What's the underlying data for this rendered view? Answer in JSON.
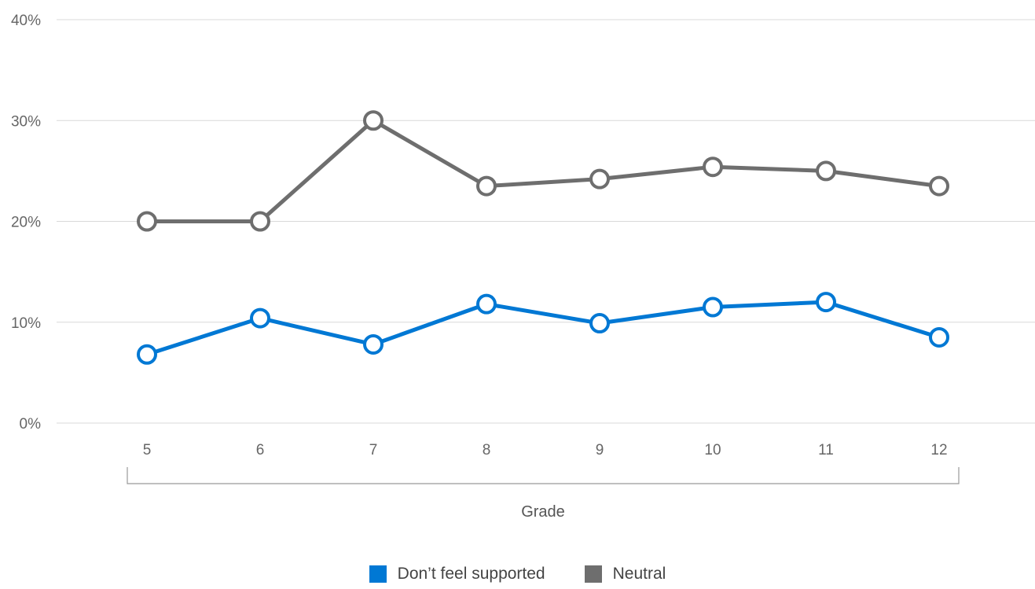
{
  "chart_data": {
    "type": "line",
    "categories": [
      "5",
      "6",
      "7",
      "8",
      "9",
      "10",
      "11",
      "12"
    ],
    "series": [
      {
        "name": "Don’t feel supported",
        "color": "#0078d4",
        "values": [
          6.8,
          10.4,
          7.8,
          11.8,
          9.9,
          11.5,
          12.0,
          8.5
        ]
      },
      {
        "name": "Neutral",
        "color": "#6e6e6e",
        "values": [
          20.0,
          20.0,
          30.0,
          23.5,
          24.2,
          25.4,
          25.0,
          23.5
        ]
      }
    ],
    "y_ticks": [
      "0%",
      "10%",
      "20%",
      "30%",
      "40%"
    ],
    "ylim": [
      0,
      40
    ],
    "xlabel": "Grade",
    "ylabel": "",
    "grid": true,
    "legend_position": "bottom"
  }
}
